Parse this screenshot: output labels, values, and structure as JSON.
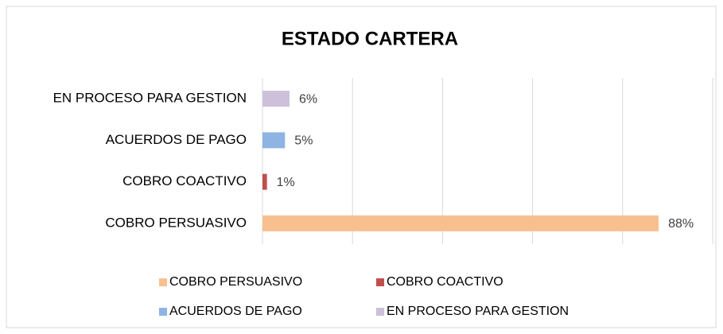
{
  "chart_data": {
    "type": "bar",
    "orientation": "horizontal",
    "title": "ESTADO CARTERA",
    "categories": [
      "COBRO PERSUASIVO",
      "COBRO COACTIVO",
      "ACUERDOS DE PAGO",
      "EN PROCESO PARA GESTION"
    ],
    "values": [
      88,
      1,
      5,
      6
    ],
    "value_labels": [
      "88%",
      "1%",
      "5%",
      "6%"
    ],
    "colors": [
      "#f9c08f",
      "#c0504d",
      "#8eb4e3",
      "#ccc0da"
    ],
    "xlim": [
      0,
      100
    ],
    "xticks": [
      0,
      20,
      40,
      60,
      80,
      100
    ],
    "grid": true,
    "legend": "bottom"
  }
}
